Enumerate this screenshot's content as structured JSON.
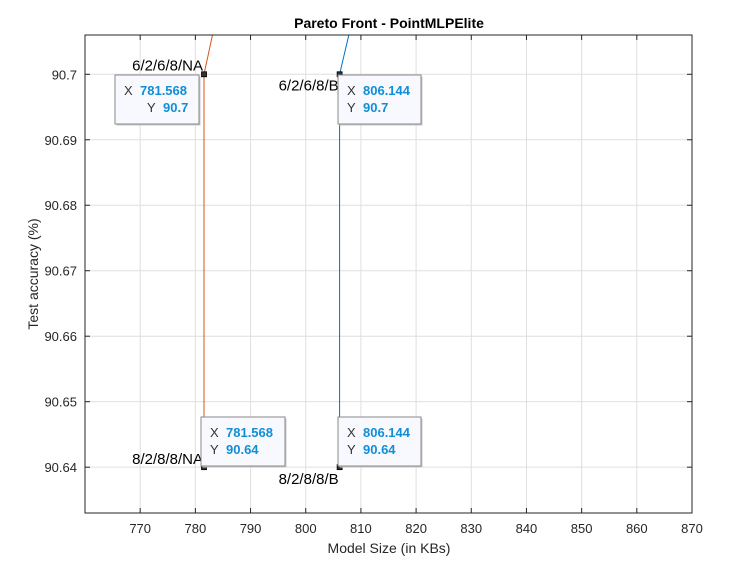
{
  "chart_data": {
    "type": "line",
    "title": "Pareto Front - PointMLPElite",
    "xlabel": "Model Size (in KBs)",
    "ylabel": "Test accuracy (%)",
    "xlim": [
      760,
      870
    ],
    "ylim": [
      90.633,
      90.706
    ],
    "xticks": [
      770,
      780,
      790,
      800,
      810,
      820,
      830,
      840,
      850,
      860,
      870
    ],
    "yticks": [
      90.64,
      90.65,
      90.66,
      90.67,
      90.68,
      90.69,
      90.7
    ],
    "ytick_labels": [
      "90.64",
      "90.65",
      "90.66",
      "90.67",
      "90.68",
      "90.69",
      "90.7"
    ],
    "grid": true,
    "series": [
      {
        "color": "#d95319",
        "points": [
          {
            "x": 781.568,
            "y": 90.64,
            "label": "8/2/8/8/NA"
          },
          {
            "x": 781.568,
            "y": 90.7,
            "label": "6/2/6/8/NA"
          },
          {
            "x": 783.1,
            "y": 90.706
          }
        ]
      },
      {
        "color": "#0072bd",
        "points": [
          {
            "x": 806.144,
            "y": 90.64,
            "label": "8/2/8/8/B"
          },
          {
            "x": 806.144,
            "y": 90.7,
            "label": "6/2/6/8/B"
          },
          {
            "x": 807.8,
            "y": 90.706
          }
        ]
      }
    ],
    "datatips": [
      {
        "x_key": "X",
        "x_val": "781.568",
        "y_key": "Y",
        "y_val": "90.7"
      },
      {
        "x_key": "X",
        "x_val": "806.144",
        "y_key": "Y",
        "y_val": "90.7"
      },
      {
        "x_key": "X",
        "x_val": "781.568",
        "y_key": "Y",
        "y_val": "90.64"
      },
      {
        "x_key": "X",
        "x_val": "806.144",
        "y_key": "Y",
        "y_val": "90.64"
      }
    ],
    "marker_color": "#000000",
    "tip_value_color": "#0f8fd6"
  }
}
